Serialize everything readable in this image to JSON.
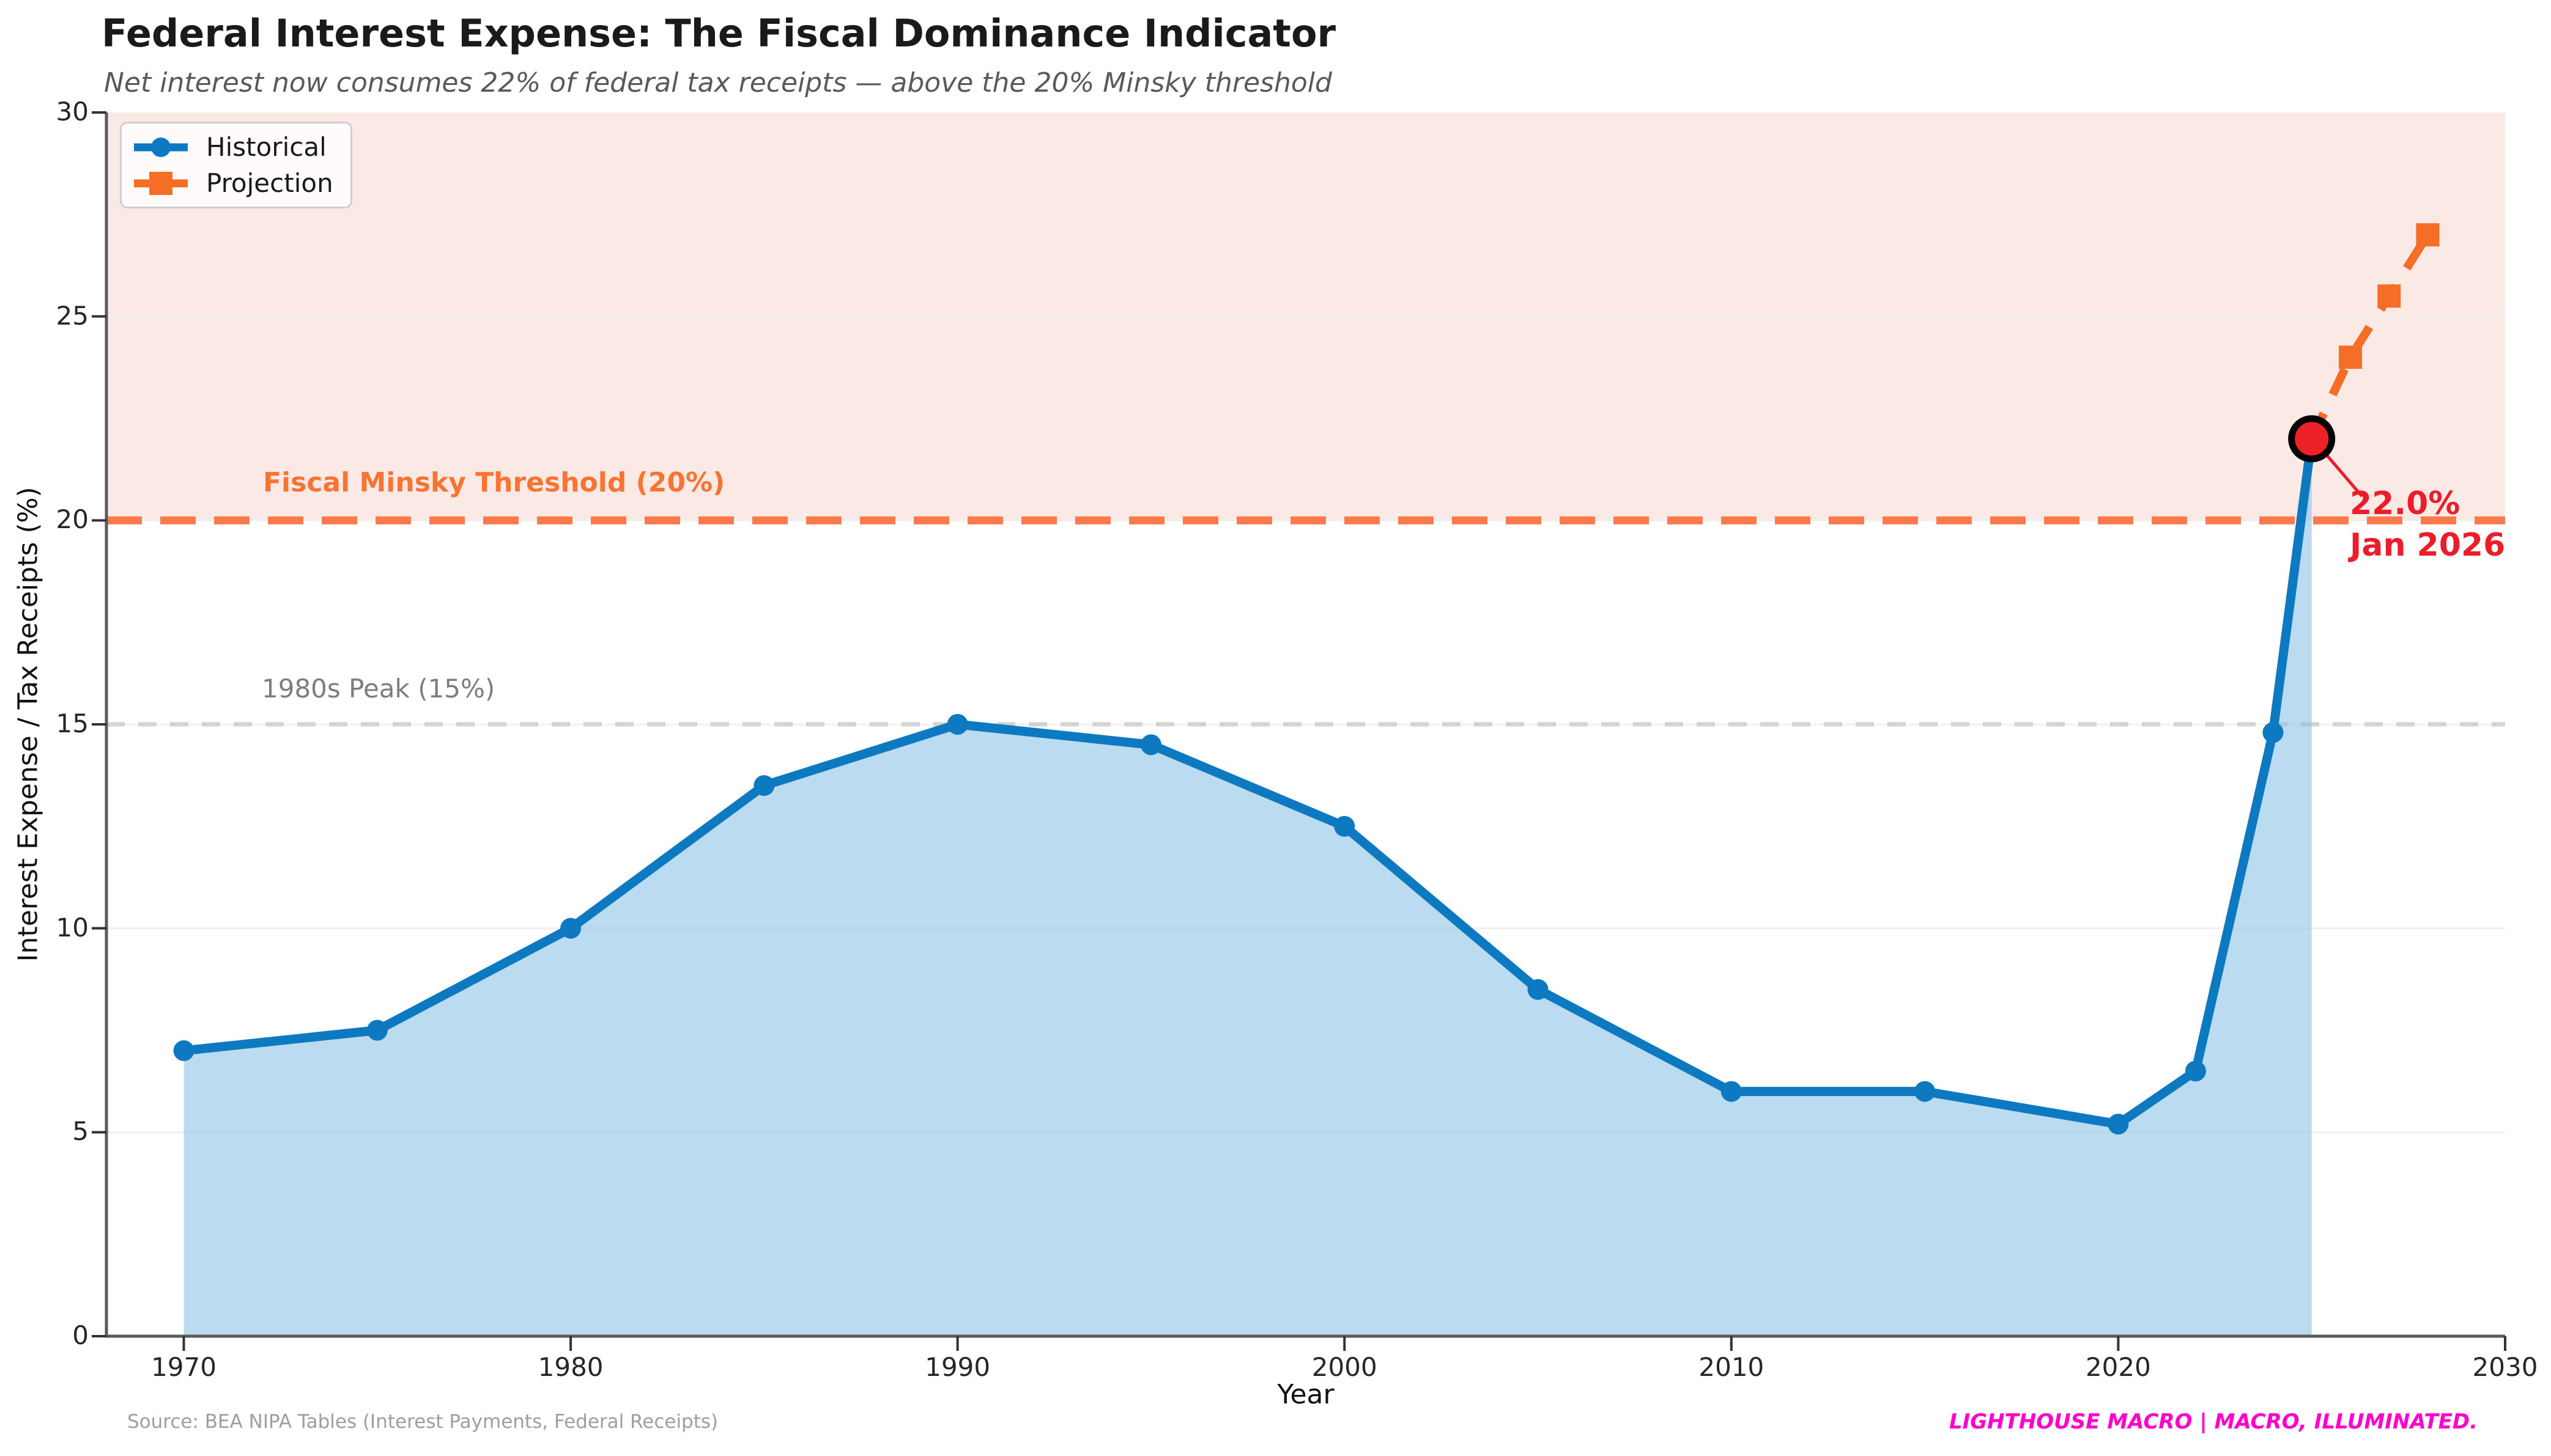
{
  "chart_data": {
    "type": "line",
    "title": "Federal Interest Expense: The Fiscal Dominance Indicator",
    "subtitle": "Net interest now consumes 22% of federal tax receipts — above the 20% Minsky threshold",
    "xlabel": "Year",
    "ylabel": "Interest Expense / Tax Receipts (%)",
    "xlim": [
      1968,
      2030
    ],
    "ylim": [
      0,
      30
    ],
    "xticks": [
      1970,
      1980,
      1990,
      2000,
      2010,
      2020,
      2030
    ],
    "yticks": [
      0,
      5,
      10,
      15,
      20,
      25,
      30
    ],
    "grid_values": [
      5,
      10,
      15,
      20,
      25
    ],
    "legend_position": "upper-left",
    "series": [
      {
        "name": "Historical",
        "marker": "circle",
        "color": "#0d79c1",
        "fill_color": "#8cc3e6",
        "fill_opacity": 0.6,
        "x": [
          1970,
          1975,
          1980,
          1985,
          1990,
          1995,
          2000,
          2005,
          2010,
          2015,
          2020,
          2022,
          2024,
          2025
        ],
        "y": [
          7.0,
          7.5,
          10.0,
          13.5,
          15.0,
          14.5,
          12.5,
          8.5,
          6.0,
          6.0,
          5.2,
          6.5,
          14.8,
          22.0
        ]
      },
      {
        "name": "Projection",
        "marker": "square",
        "style": "dashed",
        "color": "#f66e26",
        "x": [
          2025,
          2026,
          2027,
          2028
        ],
        "y": [
          22.0,
          24.0,
          25.5,
          27.0
        ]
      }
    ],
    "reference_lines": [
      {
        "label": "Fiscal Minsky Threshold (20%)",
        "value": 20,
        "line_color": "#fb7a4b",
        "label_color": "#f77433",
        "style": "dashed"
      },
      {
        "label": "1980s Peak (15%)",
        "value": 15,
        "line_color": "#d3d3d3",
        "label_color": "#7d7d7d",
        "style": "dashed"
      }
    ],
    "danger_band": {
      "from": 20,
      "to": 30,
      "color": "#fbe9e6"
    },
    "highlight_point": {
      "x": 2025,
      "y": 22.0,
      "label_value": "22.0%",
      "label_date": "Jan 2026",
      "point_color": "#ee2129",
      "edge_color": "#000000",
      "text_color": "#ed1c2b"
    },
    "source": "Source: BEA NIPA Tables (Interest Payments, Federal Receipts)",
    "branding": "LIGHTHOUSE MACRO | MACRO, ILLUMINATED.",
    "axis_color": "#5a5a5a",
    "tick_color": "#333333",
    "grid_color": "#f0f0f0"
  }
}
